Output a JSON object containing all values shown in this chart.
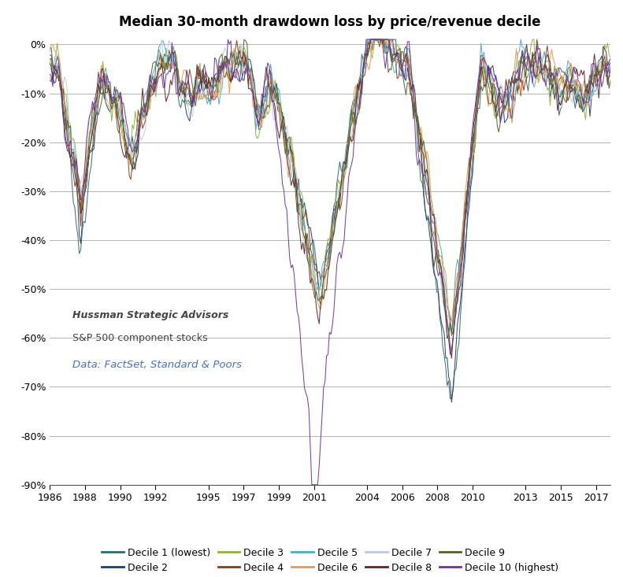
{
  "title": "Median 30-month drawdown loss by price/revenue decile",
  "ylim": [
    -90,
    2
  ],
  "yticks": [
    0,
    -10,
    -20,
    -30,
    -40,
    -50,
    -60,
    -70,
    -80,
    -90
  ],
  "ytick_labels": [
    "0%",
    "-10%",
    "-20%",
    "-30%",
    "-40%",
    "-50%",
    "-60%",
    "-70%",
    "-80%",
    "-90%"
  ],
  "xtick_years": [
    1986,
    1988,
    1990,
    1992,
    1995,
    1997,
    1999,
    2001,
    2004,
    2006,
    2008,
    2010,
    2013,
    2015,
    2017
  ],
  "decile_colors": [
    "#2e6b6e",
    "#1f3f6e",
    "#8cb53f",
    "#8b3a1a",
    "#4bacc6",
    "#f79646",
    "#b8cce4",
    "#632523",
    "#4f6228",
    "#7030a0"
  ],
  "decile_labels": [
    "Decile 1 (lowest)",
    "Decile 2",
    "Decile 3",
    "Decile 4",
    "Decile 5",
    "Decile 6",
    "Decile 7",
    "Decile 8",
    "Decile 9",
    "Decile 10 (highest)"
  ],
  "annotation1": "Hussman Strategic Advisors",
  "annotation2": "S&P 500 component stocks",
  "annotation3": "Data: FactSet, Standard & Poors",
  "start_year": 1986.0,
  "end_year": 2017.83,
  "figsize": [
    7.91,
    7.33
  ],
  "dpi": 100
}
